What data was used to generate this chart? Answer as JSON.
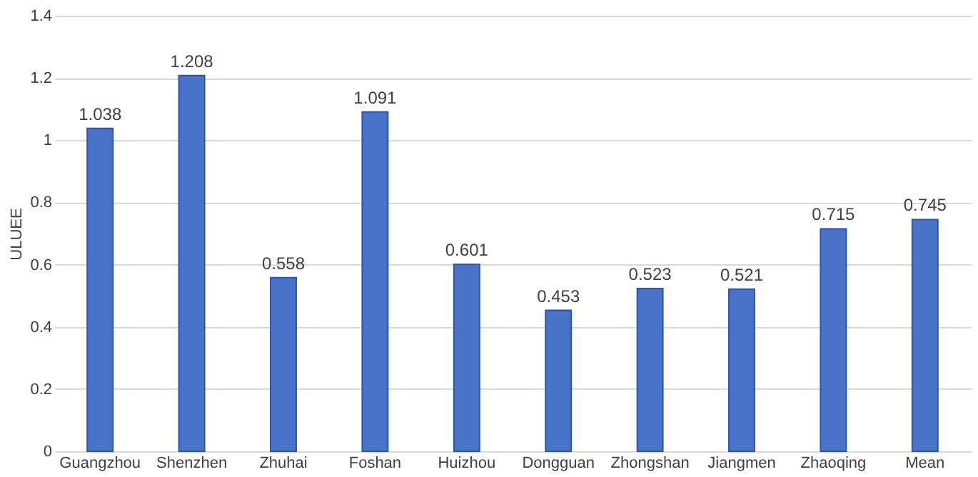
{
  "chart_data": {
    "type": "bar",
    "ylabel": "ULUEE",
    "categories": [
      "Guangzhou",
      "Shenzhen",
      "Zhuhai",
      "Foshan",
      "Huizhou",
      "Dongguan",
      "Zhongshan",
      "Jiangmen",
      "Zhaoqing",
      "Mean"
    ],
    "values": [
      1.038,
      1.208,
      0.558,
      1.091,
      0.601,
      0.453,
      0.523,
      0.521,
      0.715,
      0.745
    ],
    "color": "#4a72c8",
    "ylim": [
      0,
      1.4
    ],
    "yticks": [
      0,
      0.2,
      0.4,
      0.6,
      0.8,
      1,
      1.2,
      1.4
    ],
    "grid": "y",
    "data_labels": true
  }
}
